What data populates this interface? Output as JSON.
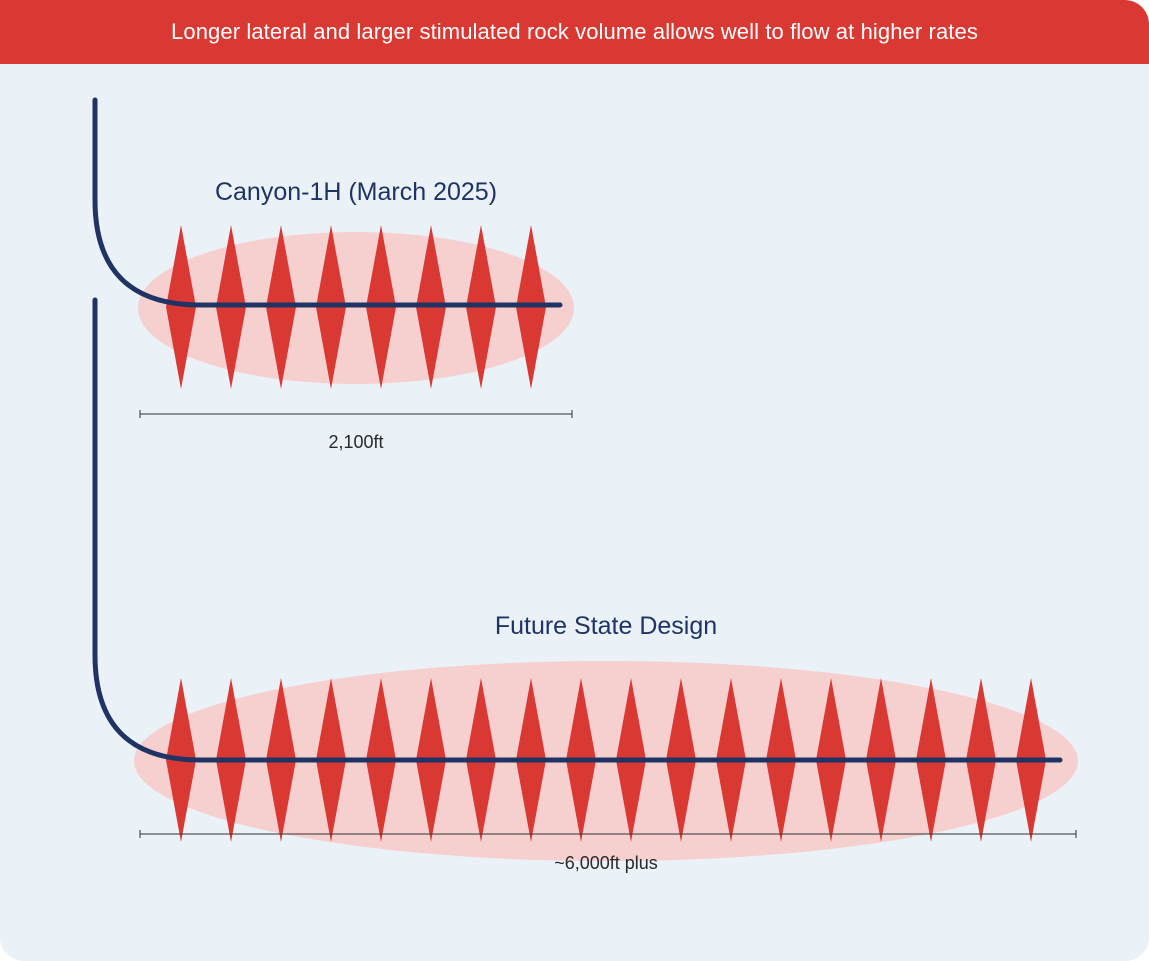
{
  "header": {
    "title": "Longer lateral and larger stimulated rock volume allows well to flow at higher rates"
  },
  "wells": [
    {
      "id": "canyon",
      "title": "Canyon-1H (March 2025)",
      "length_label": "2,100ft",
      "fracture_stages": 8
    },
    {
      "id": "future",
      "title": "Future State Design",
      "length_label": "~6,000ft plus",
      "fracture_stages": 18
    }
  ],
  "colors": {
    "banner": "#d93833",
    "background": "#eaf1f7",
    "wellbore": "#1f3464",
    "fracture": "#d93833",
    "srv": "#f6cfcf"
  }
}
